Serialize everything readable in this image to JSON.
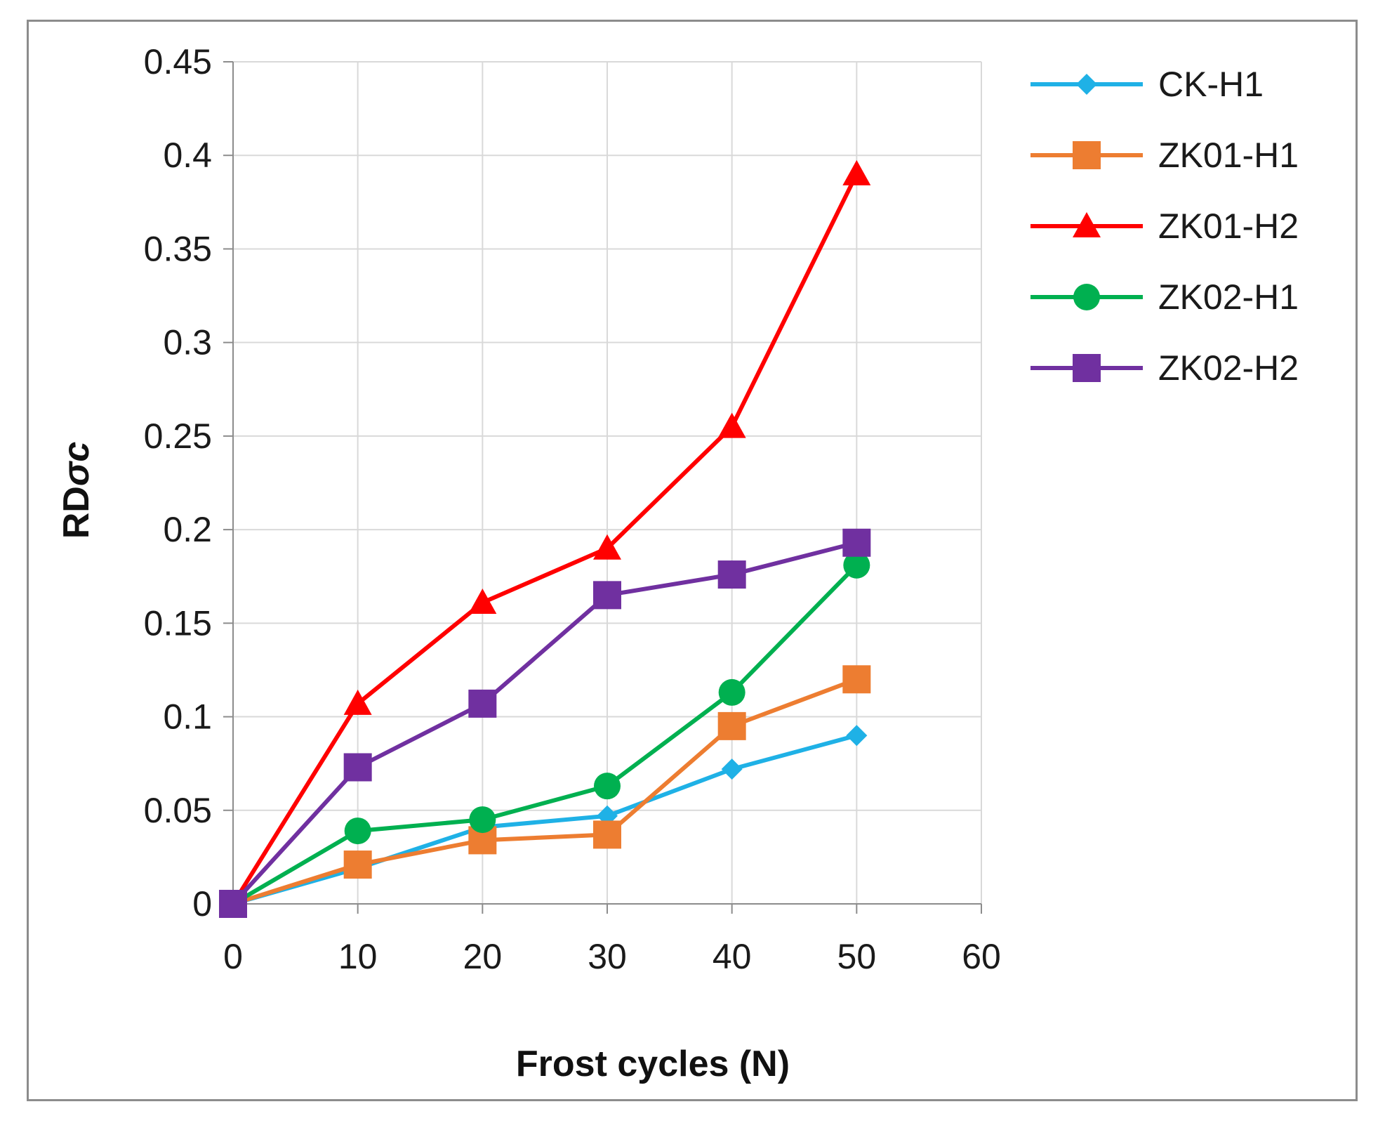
{
  "chart_data": {
    "type": "line",
    "title": "",
    "xlabel": "Frost cycles (N)",
    "ylabel_main": "RD",
    "ylabel_italic": "σc",
    "xlim": [
      0,
      60
    ],
    "ylim": [
      0,
      0.45
    ],
    "xticks": [
      0,
      10,
      20,
      30,
      40,
      50,
      60
    ],
    "xtick_labels": [
      "0",
      "10",
      "20",
      "30",
      "40",
      "50",
      "60"
    ],
    "yticks": [
      0,
      0.05,
      0.1,
      0.15,
      0.2,
      0.25,
      0.3,
      0.35,
      0.4,
      0.45
    ],
    "ytick_labels": [
      "0",
      "0.05",
      "0.1",
      "0.15",
      "0.2",
      "0.25",
      "0.3",
      "0.35",
      "0.4",
      "0.45"
    ],
    "grid": true,
    "legend_position": "right",
    "x": [
      0,
      10,
      20,
      30,
      40,
      50
    ],
    "series": [
      {
        "name": "CK-H1",
        "color": "#1fb1e6",
        "marker": "diamond",
        "values": [
          0,
          0.019,
          0.041,
          0.047,
          0.072,
          0.09
        ]
      },
      {
        "name": "ZK01-H1",
        "color": "#ed7d31",
        "marker": "square",
        "values": [
          0,
          0.021,
          0.034,
          0.037,
          0.095,
          0.12
        ]
      },
      {
        "name": "ZK01-H2",
        "color": "#ff0000",
        "marker": "triangle",
        "values": [
          0,
          0.107,
          0.161,
          0.19,
          0.255,
          0.39
        ]
      },
      {
        "name": "ZK02-H1",
        "color": "#00b050",
        "marker": "circle",
        "values": [
          0,
          0.039,
          0.045,
          0.063,
          0.113,
          0.181
        ]
      },
      {
        "name": "ZK02-H2",
        "color": "#7030a0",
        "marker": "square",
        "values": [
          0,
          0.073,
          0.107,
          0.165,
          0.176,
          0.193
        ]
      }
    ]
  }
}
